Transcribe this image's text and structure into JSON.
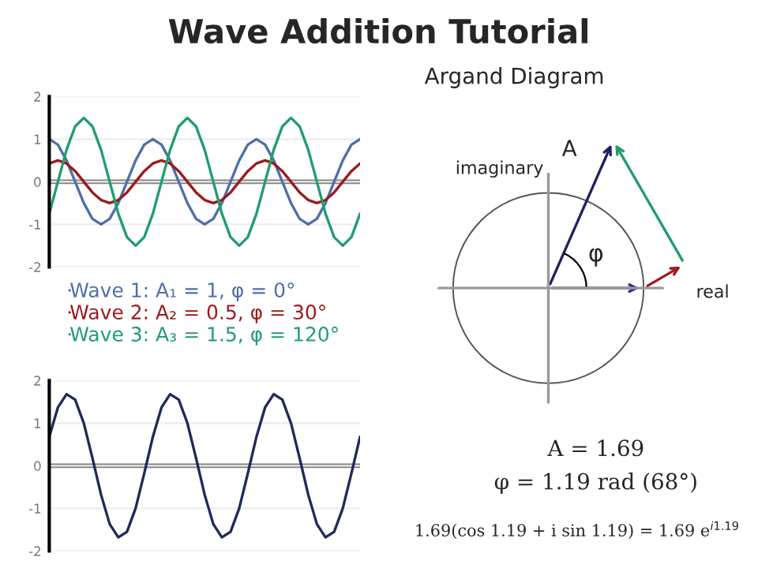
{
  "chart_data": [
    {
      "type": "line",
      "title": "Wave Addition Tutorial",
      "categories": [
        null,
        null,
        null,
        null,
        null,
        null,
        null,
        null,
        null,
        null,
        null,
        null,
        null,
        null,
        null,
        null,
        null,
        null,
        null,
        null,
        null,
        null,
        null,
        null,
        null,
        null,
        null,
        null,
        null,
        null,
        null,
        null,
        null,
        null,
        null,
        null,
        null
      ],
      "series": [
        {
          "name": "Wave 1: A₁ = 1, φ = 0°",
          "color": "#4f70a8",
          "values": [
            1,
            0.87,
            0.5,
            0,
            -0.5,
            -0.87,
            -1,
            -0.87,
            -0.5,
            0,
            0.5,
            0.87,
            1,
            0.87,
            0.5,
            0,
            -0.5,
            -0.87,
            -1,
            -0.87,
            -0.5,
            0,
            0.5,
            0.87,
            1,
            0.87,
            0.5,
            0,
            -0.5,
            -0.87,
            -1,
            -0.87,
            -0.5,
            0,
            0.5,
            0.87,
            1
          ]
        },
        {
          "name": "Wave 2: A₂ = 0.5, φ = 30°",
          "color": "#9b1b1f",
          "values": [
            0.43,
            0.5,
            0.43,
            0.25,
            0,
            -0.25,
            -0.43,
            -0.5,
            -0.43,
            -0.25,
            0,
            0.25,
            0.43,
            0.5,
            0.43,
            0.25,
            0,
            -0.25,
            -0.43,
            -0.5,
            -0.43,
            -0.25,
            0,
            0.25,
            0.43,
            0.5,
            0.43,
            0.25,
            0,
            -0.25,
            -0.43,
            -0.5,
            -0.43,
            -0.25,
            0,
            0.25,
            0.43
          ]
        },
        {
          "name": "Wave 3: A₃ = 1.5, φ = 120°",
          "color": "#1f9e6a",
          "values": [
            -0.75,
            0,
            0.75,
            1.3,
            1.5,
            1.3,
            0.75,
            0,
            -0.75,
            -1.3,
            -1.5,
            -1.3,
            -0.75,
            0,
            0.75,
            1.3,
            1.5,
            1.3,
            0.75,
            0,
            -0.75,
            -1.3,
            -1.5,
            -1.3,
            -0.75,
            0,
            0.75,
            1.3,
            1.5,
            1.3,
            0.75,
            0,
            -0.75,
            -1.3,
            -1.5,
            -1.3,
            -0.75
          ]
        }
      ],
      "ylim": [
        -2,
        2
      ],
      "yticks": [
        -2,
        -1,
        0,
        1,
        2
      ],
      "grid": "y",
      "legend": "bottom",
      "tick_labels": "y",
      "ref_lines": [
        {
          "axis": "y",
          "value": 0,
          "color": "#808080"
        }
      ]
    },
    {
      "type": "line",
      "categories": [
        null,
        null,
        null,
        null,
        null,
        null,
        null,
        null,
        null,
        null,
        null,
        null,
        null,
        null,
        null,
        null,
        null,
        null,
        null,
        null,
        null,
        null,
        null,
        null,
        null,
        null,
        null,
        null,
        null,
        null,
        null,
        null,
        null,
        null,
        null,
        null,
        null
      ],
      "series": [
        {
          "color": "#1f2a5c",
          "values": [
            0.68,
            1.37,
            1.68,
            1.55,
            1,
            0.18,
            -0.68,
            -1.37,
            -1.68,
            -1.55,
            -1,
            -0.18,
            0.68,
            1.37,
            1.68,
            1.55,
            1,
            0.18,
            -0.68,
            -1.37,
            -1.68,
            -1.55,
            -1,
            -0.18,
            0.68,
            1.37,
            1.68,
            1.55,
            1,
            0.18,
            -0.68,
            -1.37,
            -1.68,
            -1.55,
            -1,
            -0.18,
            0.68
          ]
        }
      ],
      "ylim": [
        -2,
        2
      ],
      "yticks": [
        -2,
        -1,
        0,
        1,
        2
      ],
      "grid": "y",
      "tick_labels": "y",
      "ref_lines": [
        {
          "axis": "y",
          "value": 0,
          "color": "#808080"
        }
      ]
    },
    {
      "type": "other",
      "title": "Argand Diagram",
      "annotations": [
        "imaginary",
        "real",
        "A",
        "φ",
        "A = 1.69",
        "φ = 1.19 rad (68°)",
        "1.69(cos 1.19 + i sin 1.19) = 1.69 e$^{i1.19}$"
      ]
    }
  ]
}
